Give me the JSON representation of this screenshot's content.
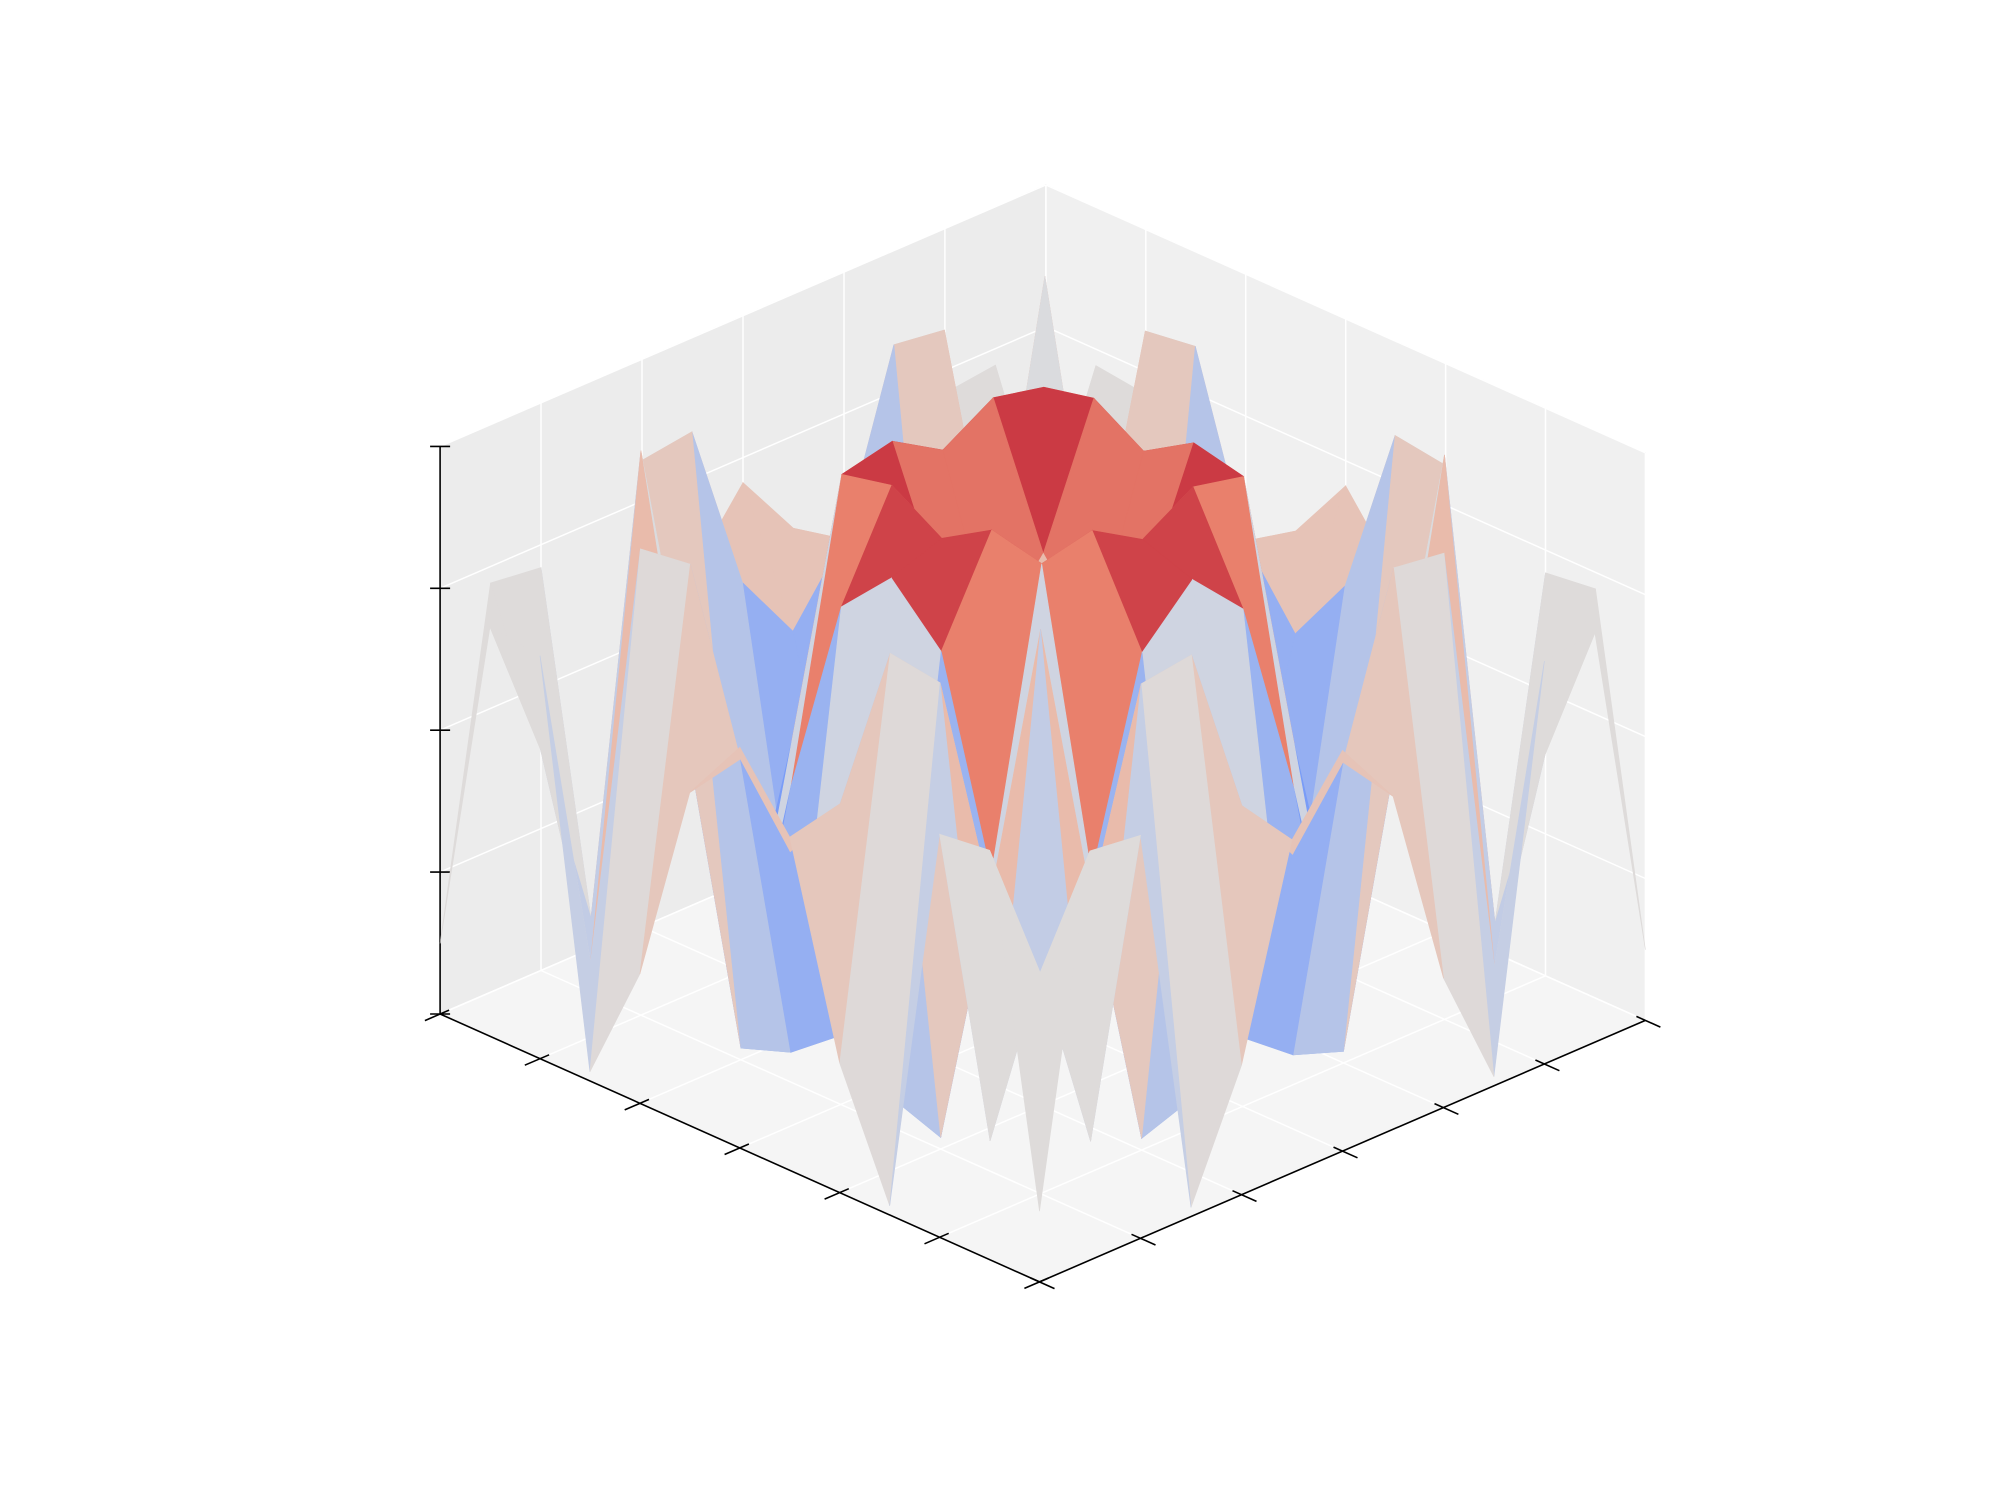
{
  "chart_data": {
    "type": "surface",
    "colormap": "coolwarm",
    "x": [
      -3,
      -2.5,
      -2,
      -1.5,
      -1,
      -0.5,
      0,
      0.5,
      1,
      1.5,
      2,
      2.5,
      3
    ],
    "y": [
      -3,
      -2.5,
      -2,
      -1.5,
      -1,
      -0.5,
      0,
      0.5,
      1,
      1.5,
      2,
      2.5,
      3
    ],
    "z": [
      [
        -0.751,
        0.442,
        0.42,
        -0.968,
        -0.544,
        0.174,
        0.412,
        0.174,
        -0.544,
        -0.968,
        0.42,
        0.442,
        -0.751
      ],
      [
        0.442,
        -0.066,
        -0.737,
        0.798,
        0.823,
        0.215,
        -0.033,
        0.215,
        0.823,
        0.798,
        -0.737,
        -0.066,
        0.442
      ],
      [
        0.42,
        -0.737,
        0.989,
        -0.033,
        -0.959,
        -0.895,
        -0.757,
        -0.895,
        -0.959,
        -0.033,
        0.989,
        -0.737,
        0.42
      ],
      [
        -0.968,
        0.798,
        -0.033,
        -0.978,
        -0.108,
        0.598,
        0.778,
        0.598,
        -0.108,
        -0.978,
        -0.033,
        0.798,
        -0.968
      ],
      [
        -0.544,
        0.823,
        -0.959,
        -0.108,
        0.909,
        0.949,
        0.841,
        0.949,
        0.909,
        -0.108,
        -0.959,
        0.823,
        -0.544
      ],
      [
        0.174,
        0.215,
        -0.895,
        0.598,
        0.949,
        0.479,
        0.247,
        0.479,
        0.949,
        0.598,
        -0.895,
        0.215,
        0.174
      ],
      [
        0.412,
        -0.033,
        -0.757,
        0.778,
        0.841,
        0.247,
        0,
        0.247,
        0.841,
        0.778,
        -0.757,
        -0.033,
        0.412
      ],
      [
        0.174,
        0.215,
        -0.895,
        0.598,
        0.949,
        0.479,
        0.247,
        0.479,
        0.949,
        0.598,
        -0.895,
        0.215,
        0.174
      ],
      [
        -0.544,
        0.823,
        -0.959,
        -0.108,
        0.909,
        0.949,
        0.841,
        0.949,
        0.909,
        -0.108,
        -0.959,
        0.823,
        -0.544
      ],
      [
        -0.968,
        0.798,
        -0.033,
        -0.978,
        -0.108,
        0.598,
        0.778,
        0.598,
        -0.108,
        -0.978,
        -0.033,
        0.798,
        -0.968
      ],
      [
        0.42,
        -0.737,
        0.989,
        -0.033,
        -0.959,
        -0.895,
        -0.757,
        -0.895,
        -0.959,
        -0.033,
        0.989,
        -0.737,
        0.42
      ],
      [
        0.442,
        -0.066,
        -0.737,
        0.798,
        0.823,
        0.215,
        -0.033,
        0.215,
        0.823,
        0.798,
        -0.737,
        -0.066,
        0.442
      ],
      [
        -0.751,
        0.442,
        0.42,
        -0.968,
        -0.544,
        0.174,
        0.412,
        0.174,
        -0.544,
        -0.968,
        0.42,
        0.442,
        -0.751
      ]
    ],
    "xlim": [
      -3,
      3
    ],
    "ylim": [
      -3,
      3
    ],
    "zlim": [
      -1,
      1
    ],
    "xticks": [
      -3,
      -2,
      -1,
      0,
      1,
      2,
      3
    ],
    "yticks": [
      -3,
      -2,
      -1,
      0,
      1,
      2,
      3
    ],
    "zticks": [
      -1,
      -0.5,
      0,
      0.5,
      1
    ],
    "grid": true
  }
}
